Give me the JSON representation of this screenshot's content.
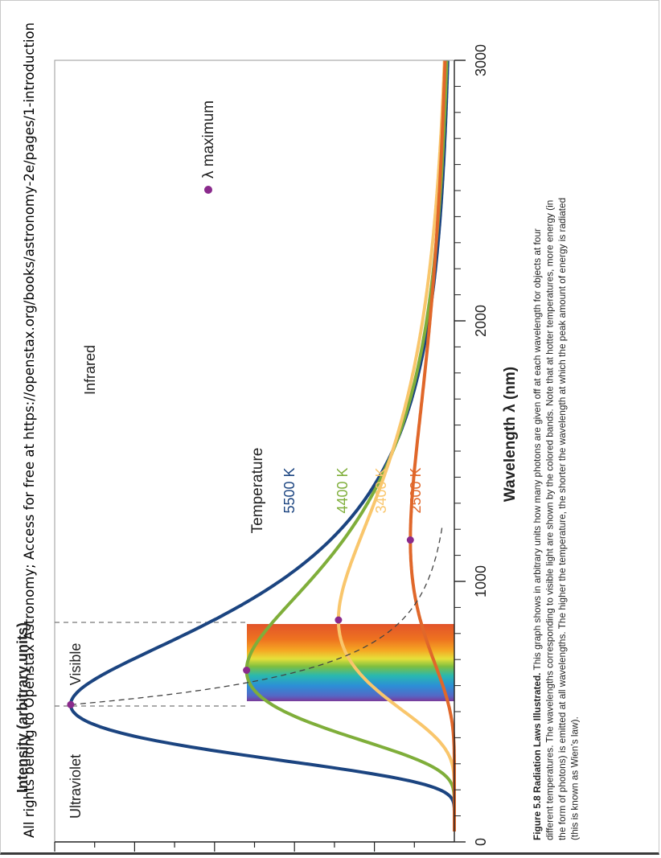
{
  "attribution": "All rights belong to Openstax Astronomy; Access for free at https://openstax.org/books/astronomy-2e/pages/1-introduction",
  "caption": {
    "lead": "Figure 5.8 Radiation Laws Illustrated.",
    "lines": [
      " This graph shows in arbitrary units how many photons are given off at each wavelength for objects at four",
      "different temperatures. The wavelengths corresponding to visible light are shown by the colored bands. Note that at hotter temperatures, more energy (in",
      "the form of photons) is emitted at all wavelengths. The higher the temperature, the shorter the wavelength at which the peak amount of energy is radiated",
      "(this is known as Wien’s law)."
    ]
  },
  "chart_data": {
    "type": "line",
    "xlabel": "Wavelength λ (nm)",
    "ylabel": "Intensity (arbitrary units)",
    "xlim": [
      0,
      3000
    ],
    "ylim": [
      0,
      10
    ],
    "x_ticks": [
      0,
      1000,
      2000,
      3000
    ],
    "grid": false,
    "regions": [
      {
        "label": "Ultraviolet",
        "range": [
          0,
          400
        ]
      },
      {
        "label": "Visible",
        "range": [
          400,
          700
        ]
      },
      {
        "label": "Infrared",
        "range": [
          700,
          3000
        ]
      }
    ],
    "legend_title": "Temperature",
    "series": [
      {
        "name": "5500 K",
        "temperature": 5500,
        "color": "#1b4480",
        "peak_x": 527,
        "peak_y": 9.6
      },
      {
        "name": "4400 K",
        "temperature": 4400,
        "color": "#7fae3a",
        "peak_x": 659,
        "peak_y": 5.2
      },
      {
        "name": "3400 K",
        "temperature": 3400,
        "color": "#f9c66c",
        "peak_x": 852,
        "peak_y": 2.9
      },
      {
        "name": "2500 K",
        "temperature": 2500,
        "color": "#e0672a",
        "peak_x": 1159,
        "peak_y": 1.1
      }
    ],
    "peak_marker_label": "λ maximum",
    "peak_marker_color": "#8a2a8c"
  }
}
